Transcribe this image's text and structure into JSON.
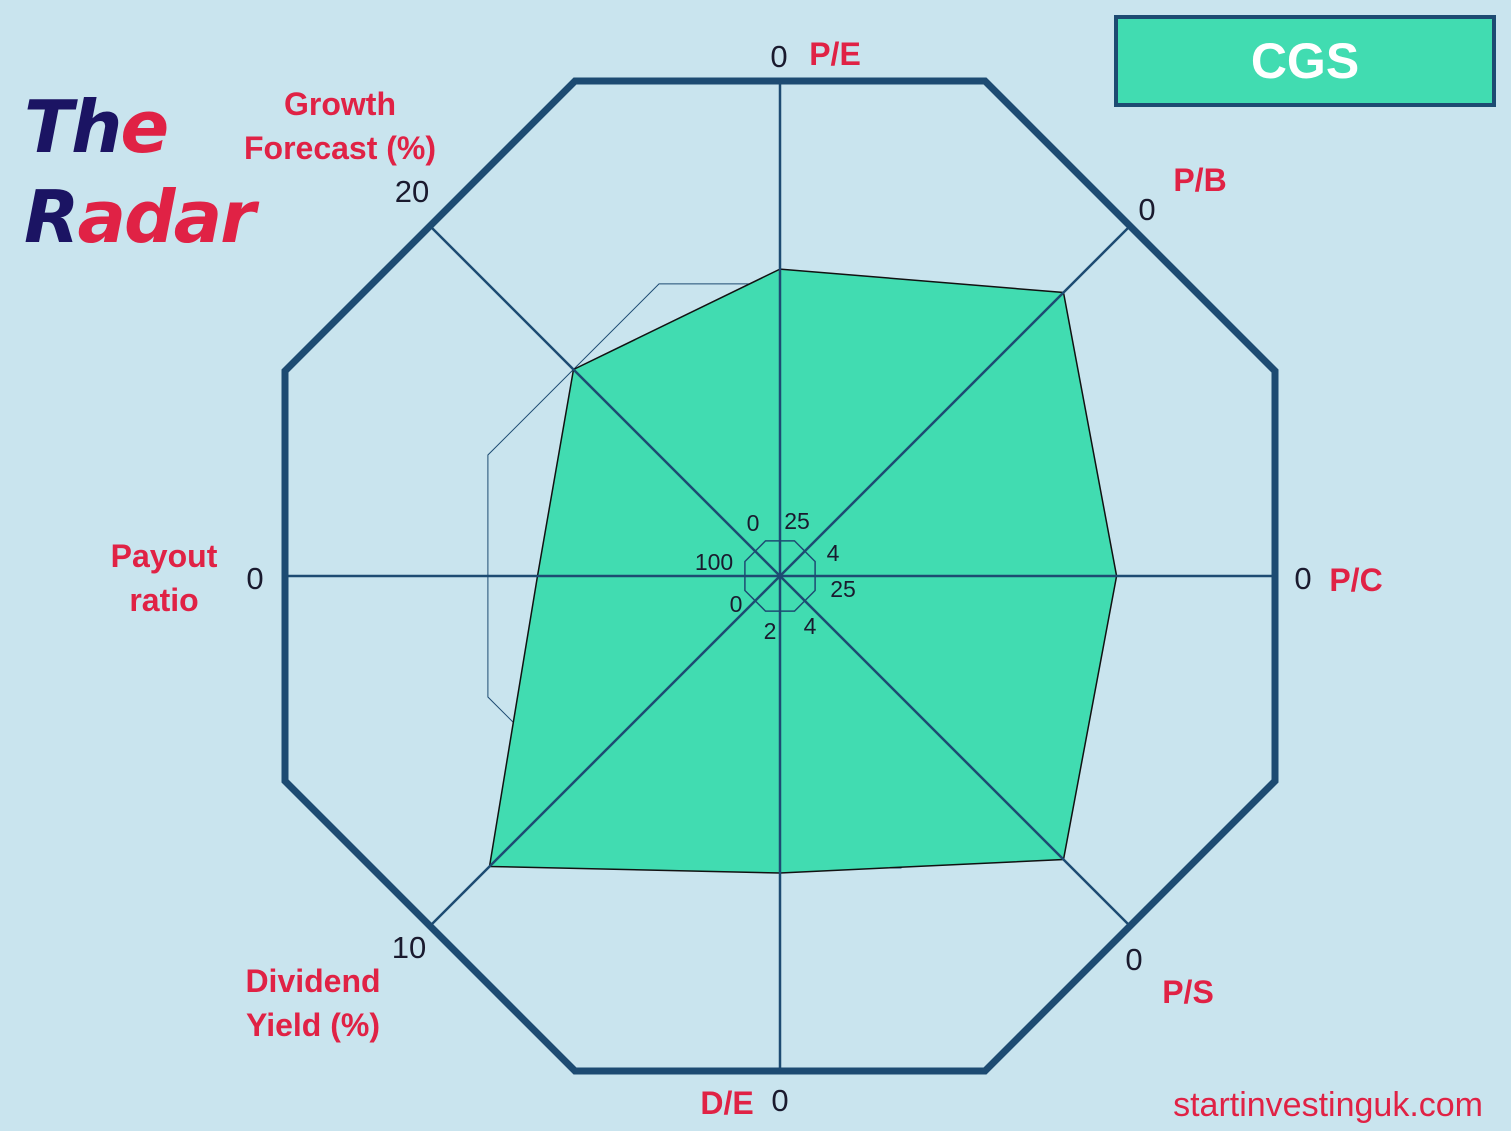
{
  "title": {
    "part1_dark": "Th",
    "part1_red": "e",
    "part2_dark": "R",
    "part2_red": "adar"
  },
  "ticker": "CGS",
  "footer": "startinvestinguk.com",
  "colors": {
    "background": "#c9e4ee",
    "fill": "#41dcb1",
    "frame": "#1d4b72",
    "label": "#e02245",
    "title_dark": "#1b1463"
  },
  "chart_data": {
    "type": "radar",
    "series": [
      {
        "values": [
          0.62,
          0.81,
          0.68,
          0.81,
          0.6,
          0.83,
          0.49,
          0.59
        ]
      }
    ],
    "axes": [
      {
        "label": "P/E",
        "outer_tick": "0",
        "inner_tick": "25"
      },
      {
        "label": "P/B",
        "outer_tick": "0",
        "inner_tick": "4"
      },
      {
        "label": "P/C",
        "outer_tick": "0",
        "inner_tick": "25"
      },
      {
        "label": "P/S",
        "outer_tick": "0",
        "inner_tick": "4"
      },
      {
        "label": "D/E",
        "outer_tick": "0",
        "inner_tick": "2"
      },
      {
        "label": "Dividend Yield (%)",
        "label_lines": [
          "Dividend",
          "Yield (%)"
        ],
        "outer_tick": "10",
        "inner_tick": "0"
      },
      {
        "label": "Payout ratio",
        "label_lines": [
          "Payout",
          "ratio"
        ],
        "outer_tick": "0",
        "inner_tick": "100"
      },
      {
        "label": "Growth Forecast (%)",
        "label_lines": [
          "Growth",
          "Forecast (%)"
        ],
        "outer_tick": "20",
        "inner_tick": "0"
      }
    ],
    "reference_ring": 0.59
  }
}
